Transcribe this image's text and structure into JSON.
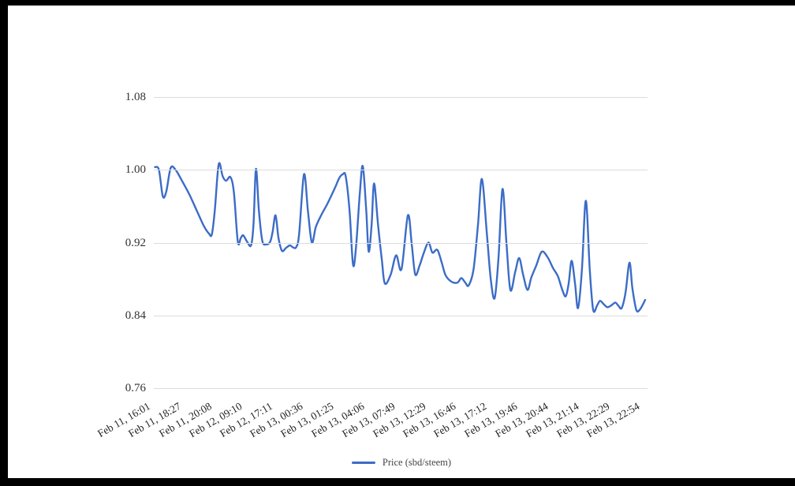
{
  "chart_data": {
    "type": "line",
    "title": "",
    "series_name": "Price (sbd/steem)",
    "legend_position": "bottom-center",
    "grid": "horizontal-only",
    "line_color": "#3b6cc7",
    "grid_color": "#dcdcdc",
    "axis_label_color": "#333333",
    "ylim": [
      0.76,
      1.08
    ],
    "y_ticks": [
      "1.08",
      "1.00",
      "0.92",
      "0.84",
      "0.76"
    ],
    "y_tick_values": [
      1.08,
      1.0,
      0.92,
      0.84,
      0.76
    ],
    "x_tick_labels": [
      "Feb 11, 16:01",
      "Feb 11, 18:27",
      "Feb 11, 20:08",
      "Feb 12, 09:10",
      "Feb 12, 17:11",
      "Feb 13, 00:36",
      "Feb 13, 01:25",
      "Feb 13, 04:06",
      "Feb 13, 07:49",
      "Feb 13, 12:29",
      "Feb 13, 16:46",
      "Feb 13, 17:12",
      "Feb 13, 19:46",
      "Feb 13, 20:44",
      "Feb 13, 21:14",
      "Feb 13, 22:29",
      "Feb 13, 22:54"
    ],
    "points_note": "pairs of [x percent across axis, price sbd/steem]",
    "points": [
      [
        0,
        1.003
      ],
      [
        0.8,
        1.0
      ],
      [
        1.6,
        0.971
      ],
      [
        2.3,
        0.976
      ],
      [
        3.2,
        1.002
      ],
      [
        4.2,
        1.0
      ],
      [
        5.5,
        0.988
      ],
      [
        7.1,
        0.972
      ],
      [
        8.7,
        0.953
      ],
      [
        10,
        0.938
      ],
      [
        11,
        0.93
      ],
      [
        11.6,
        0.929
      ],
      [
        12.2,
        0.955
      ],
      [
        13,
        1.006
      ],
      [
        13.8,
        0.993
      ],
      [
        14.5,
        0.988
      ],
      [
        15.4,
        0.992
      ],
      [
        16.1,
        0.975
      ],
      [
        16.9,
        0.921
      ],
      [
        17.5,
        0.925
      ],
      [
        18,
        0.928
      ],
      [
        18.8,
        0.921
      ],
      [
        19.6,
        0.917
      ],
      [
        20.1,
        0.94
      ],
      [
        20.6,
        1.001
      ],
      [
        21.2,
        0.955
      ],
      [
        21.9,
        0.922
      ],
      [
        22.7,
        0.918
      ],
      [
        23.5,
        0.921
      ],
      [
        24,
        0.932
      ],
      [
        24.6,
        0.95
      ],
      [
        25.2,
        0.925
      ],
      [
        25.9,
        0.911
      ],
      [
        26.7,
        0.914
      ],
      [
        27.5,
        0.917
      ],
      [
        28.1,
        0.915
      ],
      [
        28.8,
        0.915
      ],
      [
        29.4,
        0.929
      ],
      [
        30.4,
        0.995
      ],
      [
        31.2,
        0.955
      ],
      [
        32,
        0.92
      ],
      [
        32.8,
        0.937
      ],
      [
        33.9,
        0.95
      ],
      [
        35.2,
        0.963
      ],
      [
        36.7,
        0.98
      ],
      [
        37.6,
        0.991
      ],
      [
        38.3,
        0.995
      ],
      [
        38.9,
        0.993
      ],
      [
        39.7,
        0.955
      ],
      [
        40.4,
        0.896
      ],
      [
        41,
        0.914
      ],
      [
        41.8,
        0.975
      ],
      [
        42.4,
        1.004
      ],
      [
        43.1,
        0.955
      ],
      [
        43.6,
        0.91
      ],
      [
        44.2,
        0.94
      ],
      [
        44.7,
        0.985
      ],
      [
        45.5,
        0.94
      ],
      [
        46.3,
        0.9
      ],
      [
        46.9,
        0.875
      ],
      [
        48.1,
        0.885
      ],
      [
        49.2,
        0.906
      ],
      [
        50.3,
        0.891
      ],
      [
        51.6,
        0.95
      ],
      [
        52.4,
        0.917
      ],
      [
        53.1,
        0.885
      ],
      [
        54,
        0.895
      ],
      [
        54.8,
        0.908
      ],
      [
        55.8,
        0.92
      ],
      [
        56.6,
        0.909
      ],
      [
        57.6,
        0.912
      ],
      [
        58.5,
        0.898
      ],
      [
        59.3,
        0.884
      ],
      [
        60.5,
        0.877
      ],
      [
        61.7,
        0.876
      ],
      [
        62.5,
        0.881
      ],
      [
        63.3,
        0.876
      ],
      [
        64,
        0.873
      ],
      [
        65,
        0.891
      ],
      [
        65.9,
        0.94
      ],
      [
        66.7,
        0.99
      ],
      [
        67.7,
        0.93
      ],
      [
        68.5,
        0.88
      ],
      [
        69.3,
        0.859
      ],
      [
        70.1,
        0.905
      ],
      [
        70.9,
        0.979
      ],
      [
        71.7,
        0.92
      ],
      [
        72.5,
        0.868
      ],
      [
        73.5,
        0.888
      ],
      [
        74.3,
        0.903
      ],
      [
        75.1,
        0.885
      ],
      [
        76,
        0.868
      ],
      [
        76.8,
        0.882
      ],
      [
        77.8,
        0.895
      ],
      [
        78.9,
        0.91
      ],
      [
        80.1,
        0.904
      ],
      [
        81.2,
        0.892
      ],
      [
        82.2,
        0.883
      ],
      [
        83.1,
        0.868
      ],
      [
        83.8,
        0.861
      ],
      [
        84.4,
        0.875
      ],
      [
        85,
        0.9
      ],
      [
        85.7,
        0.875
      ],
      [
        86.3,
        0.848
      ],
      [
        87.1,
        0.89
      ],
      [
        87.9,
        0.966
      ],
      [
        88.7,
        0.89
      ],
      [
        89.4,
        0.846
      ],
      [
        90.2,
        0.851
      ],
      [
        90.8,
        0.856
      ],
      [
        91.6,
        0.852
      ],
      [
        92.3,
        0.849
      ],
      [
        93.1,
        0.851
      ],
      [
        93.9,
        0.854
      ],
      [
        94.5,
        0.851
      ],
      [
        95.2,
        0.848
      ],
      [
        96,
        0.865
      ],
      [
        96.8,
        0.898
      ],
      [
        97.4,
        0.87
      ],
      [
        98.2,
        0.846
      ],
      [
        99,
        0.847
      ],
      [
        100,
        0.857
      ]
    ]
  }
}
